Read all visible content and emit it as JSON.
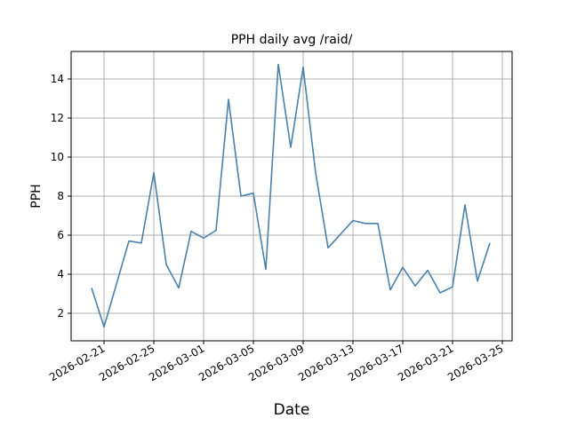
{
  "chart_data": {
    "type": "line",
    "title": "PPH daily avg /raid/",
    "xlabel": "Date",
    "ylabel": "PPH",
    "grid": true,
    "legend": null,
    "line_color": "#4682b4",
    "x_tick_labels": [
      "2026-02-21",
      "2026-02-25",
      "2026-03-01",
      "2026-03-05",
      "2026-03-09",
      "2026-03-13",
      "2026-03-17",
      "2026-03-21",
      "2026-03-25"
    ],
    "y_tick_labels": [
      "2",
      "4",
      "6",
      "8",
      "10",
      "12",
      "14"
    ],
    "ylim": [
      0.6,
      15.5
    ],
    "xlim": [
      "2026-02-19",
      "2026-03-25"
    ],
    "x": [
      "2026-02-20",
      "2026-02-21",
      "2026-02-23",
      "2026-02-24",
      "2026-02-25",
      "2026-02-26",
      "2026-02-27",
      "2026-02-28",
      "2026-03-01",
      "2026-03-02",
      "2026-03-03",
      "2026-03-04",
      "2026-03-05",
      "2026-03-06",
      "2026-03-07",
      "2026-03-08",
      "2026-03-09",
      "2026-03-10",
      "2026-03-11",
      "2026-03-13",
      "2026-03-14",
      "2026-03-15",
      "2026-03-16",
      "2026-03-17",
      "2026-03-18",
      "2026-03-19",
      "2026-03-20",
      "2026-03-21",
      "2026-03-22",
      "2026-03-23",
      "2026-03-24"
    ],
    "values": [
      3.3,
      1.3,
      5.7,
      5.6,
      9.2,
      4.5,
      3.3,
      6.2,
      5.85,
      6.25,
      12.95,
      8.0,
      8.15,
      4.25,
      14.75,
      10.5,
      14.6,
      9.2,
      5.35,
      6.75,
      6.6,
      6.6,
      3.2,
      4.35,
      3.4,
      4.2,
      3.05,
      3.35,
      7.55,
      3.65,
      5.6
    ]
  }
}
